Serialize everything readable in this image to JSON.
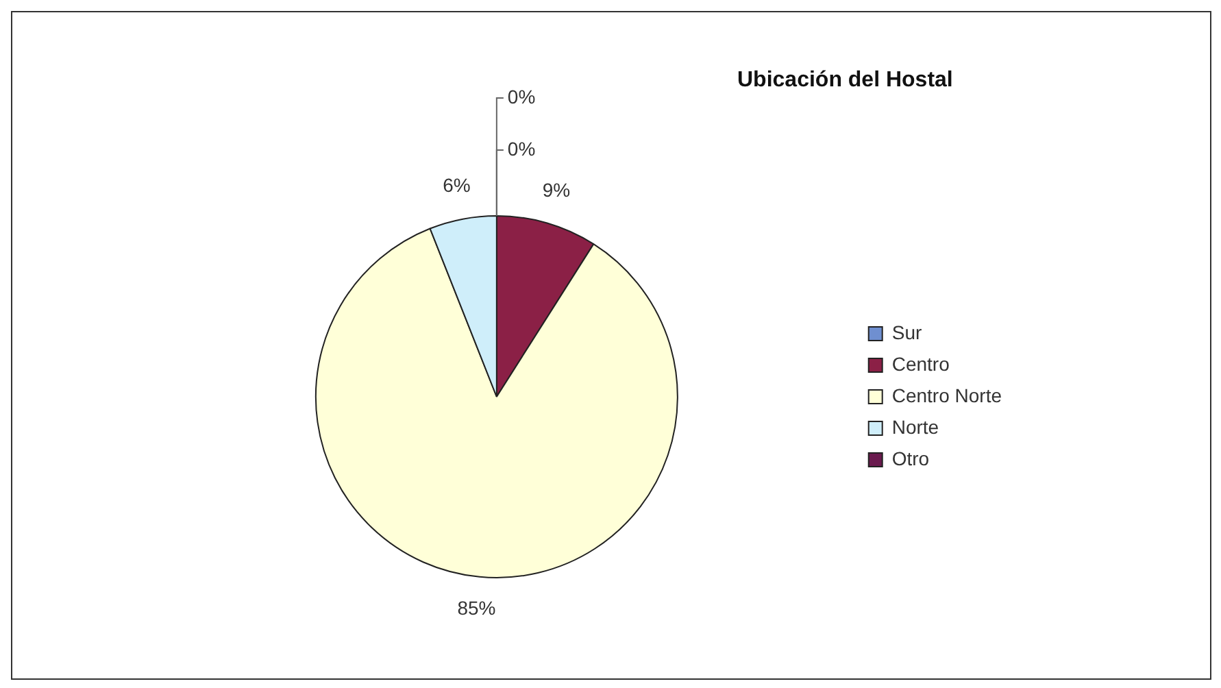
{
  "chart_data": {
    "type": "pie",
    "title": "Ubicación del Hostal",
    "categories": [
      "Sur",
      "Centro",
      "Centro Norte",
      "Norte",
      "Otro"
    ],
    "values": [
      0,
      9,
      85,
      6,
      0
    ],
    "value_labels": [
      "0%",
      "9%",
      "85%",
      "6%",
      "0%"
    ],
    "colors": [
      "#6f8fd0",
      "#8b2046",
      "#ffffd8",
      "#cfeefa",
      "#6a1a4e"
    ],
    "legend": "right"
  }
}
